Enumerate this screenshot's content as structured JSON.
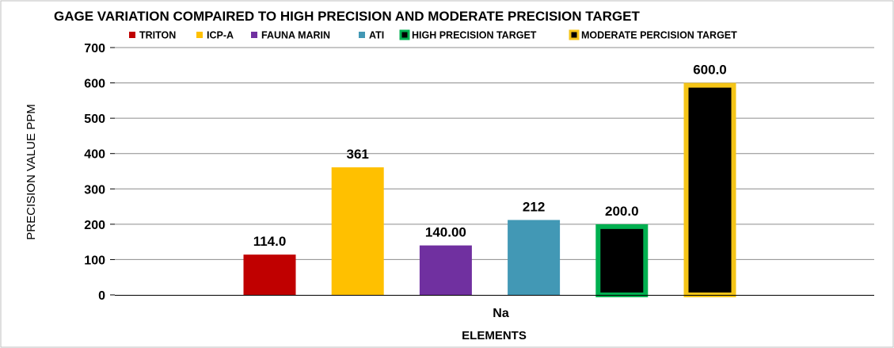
{
  "chart_data": {
    "type": "bar",
    "title": "GAGE  VARIATION COMPAIRED TO HIGH PRECISION AND MODERATE PRECISION TARGET",
    "xlabel": "ELEMENTS",
    "ylabel": "PRECISION VALUE PPM",
    "categories": [
      "Na"
    ],
    "ylim": [
      0,
      700
    ],
    "yticks": [
      "0",
      "100",
      "200",
      "300",
      "400",
      "500",
      "600",
      "700"
    ],
    "grid": true,
    "legend_position": "top",
    "series": [
      {
        "name": "TRITON",
        "values": [
          114.0
        ],
        "label": "114.0",
        "color": "#c00000",
        "border": "#c00000"
      },
      {
        "name": "ICP-A",
        "values": [
          361
        ],
        "label": "361",
        "color": "#ffc000",
        "border": "#ffc000"
      },
      {
        "name": "FAUNA MARIN",
        "values": [
          140.0
        ],
        "label": "140.00",
        "color": "#7030a0",
        "border": "#7030a0"
      },
      {
        "name": "ATI",
        "values": [
          212
        ],
        "label": "212",
        "color": "#4298b5",
        "border": "#4298b5"
      },
      {
        "name": "HIGH PRECISION TARGET",
        "values": [
          200.0
        ],
        "label": "200.0",
        "color": "#000000",
        "border": "#00b050"
      },
      {
        "name": "MODERATE PERCISION TARGET",
        "values": [
          600.0
        ],
        "label": "600.0",
        "color": "#000000",
        "border": "#f5c518"
      }
    ]
  }
}
